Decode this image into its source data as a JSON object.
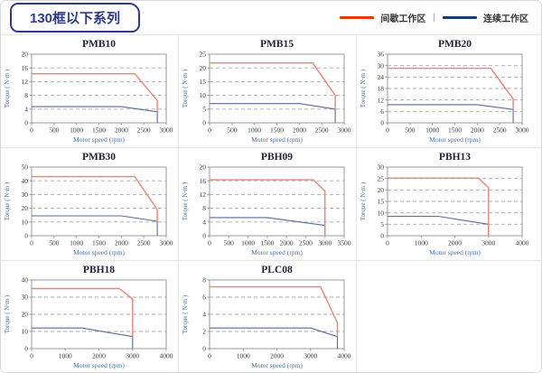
{
  "header": {
    "title": "130框以下系列",
    "legend": [
      {
        "label": "间歇工作区"
      },
      {
        "label": "连续工作区"
      }
    ],
    "legend_separator": "|"
  },
  "colors": {
    "legend_red": "#e8380d",
    "legend_blue": "#1d3a6e",
    "line_red": "#ee8272",
    "line_blue": "#5a6a99",
    "grid_line": "#a9a9a9",
    "plot_border": "#999999",
    "tick_text": "#3a3a3a",
    "axis_label": "#4a6fa5",
    "chart_title": "#222238",
    "badge_navy": "#2d3a8c"
  },
  "chart_data": [
    {
      "type": "line",
      "title": "PMB10",
      "xlabel": "Motor speed (rpm)",
      "ylabel": "Torque ( N·m )",
      "xlim": [
        0,
        3000
      ],
      "ylim": [
        0,
        20
      ],
      "xtick_step": 500,
      "ytick_step": 4,
      "grid": "horizontal-dashed",
      "legend_position": "none",
      "series": [
        {
          "name": "间歇工作区",
          "color_key": "line_red",
          "points": [
            [
              0,
              14.3
            ],
            [
              2300,
              14.3
            ],
            [
              2800,
              6.5
            ],
            [
              2800,
              3.3
            ]
          ]
        },
        {
          "name": "连续工作区",
          "color_key": "line_blue",
          "points": [
            [
              0,
              4.7
            ],
            [
              2000,
              4.7
            ],
            [
              2800,
              3.2
            ],
            [
              2800,
              0
            ]
          ]
        }
      ]
    },
    {
      "type": "line",
      "title": "PMB15",
      "xlabel": "Motor speed (rpm)",
      "ylabel": "Torque ( N·m )",
      "xlim": [
        0,
        3000
      ],
      "ylim": [
        0,
        25
      ],
      "xtick_step": 500,
      "ytick_step": 5,
      "grid": "horizontal-dashed",
      "legend_position": "none",
      "series": [
        {
          "name": "间歇工作区",
          "color_key": "line_red",
          "points": [
            [
              0,
              21.8
            ],
            [
              2300,
              21.8
            ],
            [
              2800,
              10
            ],
            [
              2800,
              5
            ]
          ]
        },
        {
          "name": "连续工作区",
          "color_key": "line_blue",
          "points": [
            [
              0,
              7
            ],
            [
              2000,
              7
            ],
            [
              2800,
              5
            ],
            [
              2800,
              0
            ]
          ]
        }
      ]
    },
    {
      "type": "line",
      "title": "PMB20",
      "xlabel": "Motor speed (rpm)",
      "ylabel": "Torque ( N·m )",
      "xlim": [
        0,
        3000
      ],
      "ylim": [
        0,
        36
      ],
      "xtick_step": 500,
      "ytick_step": 6,
      "grid": "horizontal-dashed",
      "legend_position": "none",
      "series": [
        {
          "name": "间歇工作区",
          "color_key": "line_red",
          "points": [
            [
              0,
              28.6
            ],
            [
              2300,
              28.6
            ],
            [
              2800,
              12.5
            ],
            [
              2800,
              7
            ]
          ]
        },
        {
          "name": "连续工作区",
          "color_key": "line_blue",
          "points": [
            [
              0,
              9.5
            ],
            [
              2000,
              9.5
            ],
            [
              2800,
              7
            ],
            [
              2800,
              0
            ]
          ]
        }
      ]
    },
    {
      "type": "line",
      "title": "PMB30",
      "xlabel": "Motor speed (rpm)",
      "ylabel": "Torque ( N·m )",
      "xlim": [
        0,
        3000
      ],
      "ylim": [
        0,
        50
      ],
      "xtick_step": 500,
      "ytick_step": 10,
      "grid": "horizontal-dashed",
      "legend_position": "none",
      "series": [
        {
          "name": "间歇工作区",
          "color_key": "line_red",
          "points": [
            [
              0,
              43
            ],
            [
              2300,
              43
            ],
            [
              2800,
              19
            ],
            [
              2800,
              10.5
            ]
          ]
        },
        {
          "name": "连续工作区",
          "color_key": "line_blue",
          "points": [
            [
              0,
              14.5
            ],
            [
              2000,
              14.5
            ],
            [
              2800,
              10.5
            ],
            [
              2800,
              0
            ]
          ]
        }
      ]
    },
    {
      "type": "line",
      "title": "PBH09",
      "xlabel": "Motor speed (rpm)",
      "ylabel": "Torque ( N·m )",
      "xlim": [
        0,
        3500
      ],
      "ylim": [
        0,
        20
      ],
      "xtick_step": 500,
      "ytick_step": 4,
      "grid": "horizontal-dashed",
      "legend_position": "none",
      "series": [
        {
          "name": "间歇工作区",
          "color_key": "line_red",
          "points": [
            [
              0,
              16.3
            ],
            [
              2700,
              16.3
            ],
            [
              3000,
              13
            ],
            [
              3000,
              0
            ]
          ]
        },
        {
          "name": "连续工作区",
          "color_key": "line_blue",
          "points": [
            [
              0,
              5.3
            ],
            [
              1500,
              5.3
            ],
            [
              3000,
              3
            ],
            [
              3000,
              0
            ]
          ]
        }
      ]
    },
    {
      "type": "line",
      "title": "PBH13",
      "xlabel": "Motor speed (rpm)",
      "ylabel": "Torque ( N·m )",
      "xlim": [
        0,
        4000
      ],
      "ylim": [
        0,
        30
      ],
      "xtick_step": 1000,
      "ytick_step": 5,
      "grid": "horizontal-dashed",
      "legend_position": "none",
      "series": [
        {
          "name": "间歇工作区",
          "color_key": "line_red",
          "points": [
            [
              0,
              25.2
            ],
            [
              2700,
              25.2
            ],
            [
              3000,
              21
            ],
            [
              3000,
              0
            ]
          ]
        },
        {
          "name": "连续工作区",
          "color_key": "line_blue",
          "points": [
            [
              0,
              8.5
            ],
            [
              1500,
              8.5
            ],
            [
              3000,
              5
            ],
            [
              3000,
              0
            ]
          ]
        }
      ]
    },
    {
      "type": "line",
      "title": "PBH18",
      "xlabel": "Motor speed (rpm)",
      "ylabel": "Torque ( N·m )",
      "xlim": [
        0,
        4000
      ],
      "ylim": [
        0,
        40
      ],
      "xtick_step": 1000,
      "ytick_step": 10,
      "grid": "horizontal-dashed",
      "legend_position": "none",
      "series": [
        {
          "name": "间歇工作区",
          "color_key": "line_red",
          "points": [
            [
              0,
              35
            ],
            [
              2600,
              35
            ],
            [
              3000,
              29
            ],
            [
              3000,
              7
            ]
          ]
        },
        {
          "name": "连续工作区",
          "color_key": "line_blue",
          "points": [
            [
              0,
              12
            ],
            [
              1500,
              12
            ],
            [
              3000,
              7
            ],
            [
              3000,
              0
            ]
          ]
        }
      ]
    },
    {
      "type": "line",
      "title": "PLC08",
      "xlabel": "Motor speed (rpm)",
      "ylabel": "Torque ( N·m )",
      "xlim": [
        0,
        4000
      ],
      "ylim": [
        0,
        8
      ],
      "xtick_step": 1000,
      "ytick_step": 2,
      "grid": "horizontal-dashed",
      "legend_position": "none",
      "series": [
        {
          "name": "间歇工作区",
          "color_key": "line_red",
          "points": [
            [
              0,
              7.2
            ],
            [
              3300,
              7.2
            ],
            [
              3800,
              3
            ],
            [
              3800,
              1.5
            ]
          ]
        },
        {
          "name": "连续工作区",
          "color_key": "line_blue",
          "points": [
            [
              0,
              2.4
            ],
            [
              3000,
              2.4
            ],
            [
              3800,
              1.4
            ],
            [
              3800,
              0
            ]
          ]
        }
      ]
    }
  ]
}
